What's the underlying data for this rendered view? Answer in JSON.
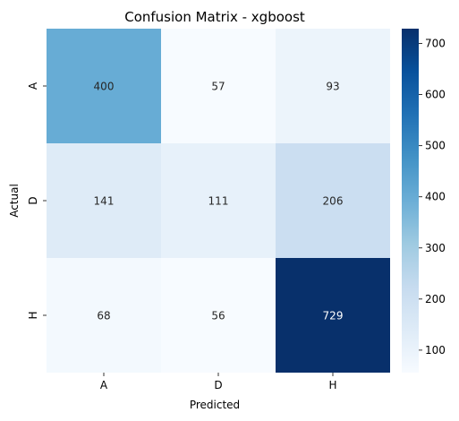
{
  "chart_data": {
    "type": "heatmap",
    "title": "Confusion Matrix - xgboost",
    "xlabel": "Predicted",
    "ylabel": "Actual",
    "x_categories": [
      "A",
      "D",
      "H"
    ],
    "y_categories": [
      "A",
      "D",
      "H"
    ],
    "values": [
      [
        400,
        57,
        93
      ],
      [
        141,
        111,
        206
      ],
      [
        68,
        56,
        729
      ]
    ],
    "colormap": "Blues",
    "colorbar": {
      "min": 56,
      "max": 729,
      "ticks": [
        100,
        200,
        300,
        400,
        500,
        600,
        700
      ],
      "tick_labels": [
        "100",
        "200",
        "300",
        "400",
        "500",
        "600",
        "700"
      ]
    },
    "grid": false
  }
}
